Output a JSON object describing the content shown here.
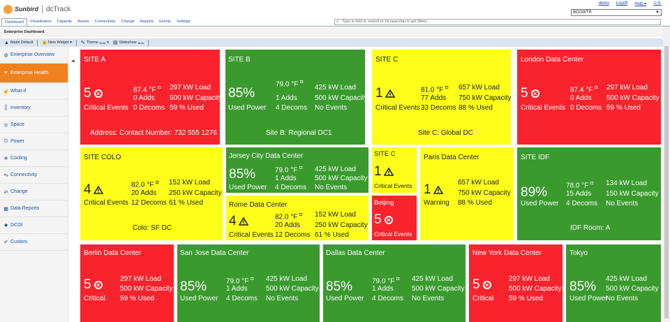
{
  "header": {
    "brand": "Sunbird",
    "product": "dcTrack",
    "links": [
      "demo",
      "Logoff",
      "Help ▾",
      "U.S."
    ],
    "site_select": "BDGWTR"
  },
  "tabs": [
    "Dashboard",
    "Visualization",
    "Capacity",
    "Assets",
    "Connectivity",
    "Change",
    "Reports",
    "Events",
    "Settings"
  ],
  "search_placeholder": "Type in field to search or hit spacebar to get filters...",
  "breadcrumb": "Enterprise Dashboard",
  "toolbar": {
    "make_default": "Make Default",
    "new_widget": "New Widget ▾",
    "theme": "Theme",
    "theme_sup": "Beta",
    "slideshow": "Slideshow",
    "slideshow_sup": "Beta"
  },
  "sidebar": [
    {
      "label": "Enterprise Overview",
      "icon": "globe-icon"
    },
    {
      "label": "Enterprise Health",
      "icon": "heart-icon",
      "active": true
    },
    {
      "label": "What-if",
      "icon": "thumbs-up-icon"
    },
    {
      "label": "Inventory",
      "icon": "barcode-icon"
    },
    {
      "label": "Space",
      "icon": "target-icon"
    },
    {
      "label": "Power",
      "icon": "power-icon"
    },
    {
      "label": "Cooling",
      "icon": "snowflake-icon"
    },
    {
      "label": "Connectivity",
      "icon": "connectivity-icon"
    },
    {
      "label": "Change",
      "icon": "change-icon"
    },
    {
      "label": "Data Reports",
      "icon": "report-icon"
    },
    {
      "label": "DCOI",
      "icon": "gear-icon"
    },
    {
      "label": "Custom",
      "icon": "wrench-icon"
    }
  ],
  "colors": {
    "red": "#f9232d",
    "green": "#3a9a2e",
    "yellow": "#fefe19",
    "active": "#f0811c"
  },
  "tiles": {
    "site_a": {
      "title": "SITE A",
      "big": "5",
      "sub": "Critical Events",
      "temp": "87.4 °F",
      "c2": [
        "0 Adds",
        "0 Decoms"
      ],
      "c3": [
        "297 kW Load",
        "500 kW Capacity",
        "59 % Used"
      ],
      "footer": "Address: Contact Number: 732 555 1276"
    },
    "site_b": {
      "title": "SITE B",
      "big": "85%",
      "sub": "Used Power",
      "temp": "79.0 °F",
      "c2": [
        "1 Adds",
        "4 Decoms"
      ],
      "c3": [
        "425 kW Load",
        "500 kW Capacity",
        "No Events"
      ],
      "footer": "Site B: Regional DC1"
    },
    "site_c": {
      "title": "SITE C",
      "big": "1",
      "sub": "Critical Events",
      "temp": "81.0 °F",
      "c2": [
        "77 Adds",
        "33 Decoms"
      ],
      "c3": [
        "657 kW Load",
        "750 kW Capacity",
        "88 % Used"
      ],
      "footer": "Site C: Global DC"
    },
    "london": {
      "title": "London Data Center",
      "big": "5",
      "sub": "Critical Events",
      "temp": "87.4 °F",
      "c2": [
        "0 Adds",
        "0 Decoms"
      ],
      "c3": [
        "297 kW Load",
        "500 kW Capacity",
        "59 % Used"
      ]
    },
    "site_colo": {
      "title": "SITE COLO",
      "big": "4",
      "sub": "Critical Events",
      "temp": "82.0 °F",
      "c2": [
        "20 Adds",
        "12 Decoms"
      ],
      "c3": [
        "152 kW Load",
        "250 kW Capacity",
        "61 % Used"
      ],
      "footer": "Colo: SF DC"
    },
    "jersey": {
      "title": "Jersey City Data Center",
      "big": "85%",
      "sub": "Used Power",
      "temp": "79.0 °F",
      "c2": [
        "1 Adds",
        "4 Decoms"
      ],
      "c3": [
        "425 kW Load",
        "500 kW Capacity",
        "No Events"
      ]
    },
    "rome": {
      "title": "Rome Data Center",
      "big": "4",
      "sub": "Critical Events",
      "temp": "82.0 °F",
      "c2": [
        "20 Adds",
        "12 Decoms"
      ],
      "c3": [
        "152 kW Load",
        "250 kW Capacity",
        "61 % Used"
      ]
    },
    "site_c2": {
      "title": "SITE C",
      "big": "1",
      "sub": "Critical Events"
    },
    "beijing": {
      "title": "Beijing",
      "big": "5",
      "sub": "Critical Events"
    },
    "paris": {
      "title": "Paris Data Center",
      "big": "1",
      "sub": "Warning",
      "c3": [
        "657 kW Load",
        "750 kW Capacity",
        "88 % Used"
      ]
    },
    "site_idf": {
      "title": "SITE IDF",
      "big": "89%",
      "sub": "Used Power",
      "temp": "78.0 °F",
      "c2": [
        "15 Adds",
        "4 Decoms"
      ],
      "c3": [
        "134 kW Load",
        "150 kW Capacity",
        "No Events"
      ],
      "footer": "IDF Room: A"
    },
    "berlin": {
      "title": "Berlin Data Center",
      "big": "5",
      "sub": "Critical",
      "c3": [
        "297 kW Load",
        "500 kW Capacity",
        "59 % Used"
      ]
    },
    "sanjose": {
      "title": "San Jose Data Center",
      "big": "85%",
      "sub": "Used Power",
      "temp": "79.0 °F",
      "c2": [
        "1 Adds",
        "4 Decoms"
      ],
      "c3": [
        "425 kW Load",
        "500 kW Capacity",
        "No Events"
      ]
    },
    "dallas": {
      "title": "Dallas Data Center",
      "big": "85%",
      "sub": "Used Power",
      "temp": "79.0 °F",
      "c2": [
        "1 Adds",
        "4 Decoms"
      ],
      "c3": [
        "425 kW Load",
        "500 kW Capacity",
        "No Events"
      ]
    },
    "newyork": {
      "title": "New York Data Center",
      "big": "5",
      "sub": "Critical",
      "c3": [
        "297 kW Load",
        "500 kW Capacity",
        "59 % Used"
      ]
    },
    "tokyo": {
      "title": "Tokyo",
      "big": "85%",
      "sub": "Used Power",
      "c3": [
        "425 kW Load",
        "500 kW Capacity",
        "No Events"
      ]
    }
  }
}
